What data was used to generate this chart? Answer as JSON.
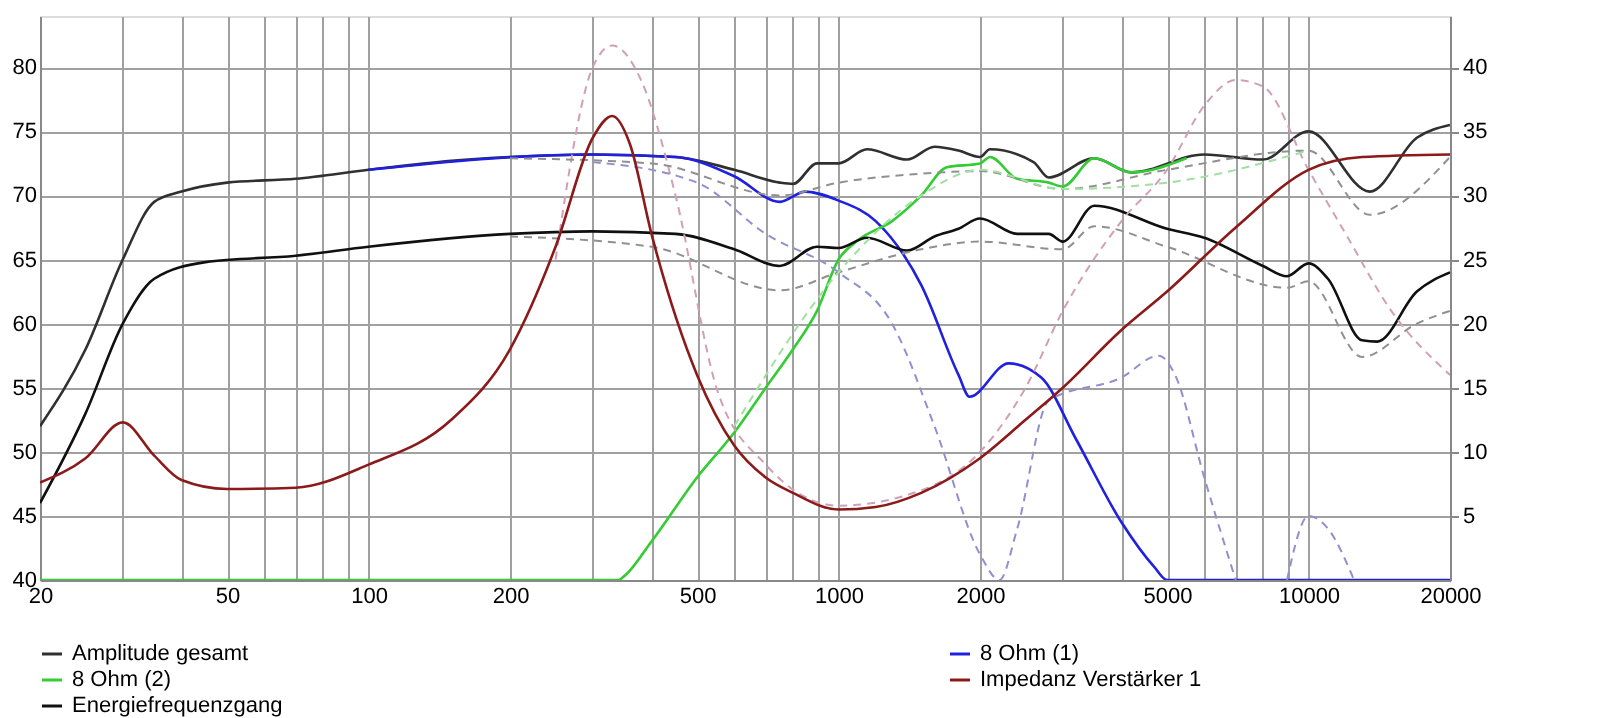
{
  "chart_data": {
    "type": "line",
    "log": "x",
    "grid": true,
    "legend": "bottom",
    "line_style": "solid",
    "marker": "none",
    "xlim": [
      20,
      20000
    ],
    "xticks": [
      20,
      {
        "value": 30,
        "label": null
      },
      {
        "value": 40,
        "label": null
      },
      50,
      {
        "value": 60,
        "label": null
      },
      {
        "value": 70,
        "label": null
      },
      {
        "value": 80,
        "label": null
      },
      {
        "value": 90,
        "label": null
      },
      100,
      200,
      {
        "value": 300,
        "label": null
      },
      {
        "value": 400,
        "label": null
      },
      500,
      {
        "value": 600,
        "label": null
      },
      {
        "value": 700,
        "label": null
      },
      {
        "value": 800,
        "label": null
      },
      {
        "value": 900,
        "label": null
      },
      1000,
      2000,
      {
        "value": 3000,
        "label": null
      },
      {
        "value": 4000,
        "label": null
      },
      5000,
      {
        "value": 6000,
        "label": null
      },
      {
        "value": 7000,
        "label": null
      },
      {
        "value": 8000,
        "label": null
      },
      {
        "value": 9000,
        "label": null
      },
      10000,
      20000
    ],
    "ylim": [
      40,
      84
    ],
    "yticks": [
      40,
      45,
      50,
      55,
      60,
      65,
      70,
      75,
      80
    ],
    "y2lim": [
      0,
      44
    ],
    "y2ticks": [
      5,
      10,
      15,
      20,
      25,
      30,
      35,
      40
    ],
    "series": [
      {
        "name": "Amplitude gesamt",
        "color": "#303030",
        "x": [
          20,
          25,
          30,
          35,
          40,
          50,
          70,
          100,
          150,
          200,
          300,
          450,
          600,
          750,
          800,
          900,
          1000,
          1150,
          1400,
          1600,
          1800,
          2000,
          2100,
          2600,
          2800,
          3500,
          4200,
          6000,
          8000,
          10000,
          13500,
          17000,
          20000
        ],
        "values": [
          52,
          58,
          65,
          69.5,
          70.3,
          71,
          71.3,
          72,
          72.7,
          73,
          73.2,
          73,
          72,
          71,
          70.9,
          72.5,
          72.5,
          73.6,
          72.8,
          73.8,
          73.5,
          73,
          73.6,
          72.6,
          71.4,
          72.9,
          71.8,
          73.2,
          72.8,
          75,
          70.3,
          74.5,
          75.5
        ]
      },
      {
        "name": "8 Ohm (1)",
        "color": "#2020e0",
        "x": [
          100,
          300,
          450,
          600,
          750,
          850,
          1000,
          1200,
          1500,
          1800,
          1900,
          2300,
          2700,
          3200,
          4000,
          4700,
          5000,
          20000
        ],
        "values": [
          72,
          73.2,
          73,
          71.5,
          69.5,
          70.3,
          69.6,
          68,
          63,
          56,
          54.3,
          56.9,
          55.8,
          51,
          44.5,
          41,
          40,
          40
        ]
      },
      {
        "name": "8 Ohm (2)",
        "color": "#33cc33",
        "x": [
          20,
          340,
          350,
          400,
          500,
          600,
          700,
          800,
          900,
          1000,
          1100,
          1300,
          1500,
          1700,
          2000,
          2100,
          2400,
          2800,
          3000,
          3500,
          4200,
          5500
        ],
        "values": [
          40,
          40,
          40.3,
          43,
          48,
          51.5,
          55,
          58,
          61,
          65,
          66.5,
          68,
          70,
          72.2,
          72.5,
          73,
          71.3,
          71,
          70.7,
          72.9,
          71.8,
          72.9
        ]
      },
      {
        "name": "Impedanz Verstärker 1",
        "color": "#8b1a1a",
        "axis": "y2",
        "x": [
          20,
          25,
          30,
          35,
          40,
          50,
          70,
          100,
          150,
          200,
          250,
          300,
          330,
          360,
          400,
          500,
          600,
          700,
          800,
          1000,
          1200,
          1500,
          2000,
          2500,
          3000,
          4000,
          5000,
          7000,
          10000,
          13000,
          20000
        ],
        "values": [
          7.6,
          9.5,
          12.3,
          9.7,
          7.8,
          7.1,
          7.2,
          9,
          12.5,
          18,
          26,
          34.5,
          36.2,
          34,
          27,
          16,
          10.5,
          8,
          6.8,
          5.5,
          5.7,
          6.8,
          9.5,
          12.5,
          15,
          19.5,
          22.5,
          27.5,
          32,
          33,
          33.2
        ]
      },
      {
        "name": "Energiefrequenzgang",
        "color": "#101010",
        "x": [
          20,
          25,
          30,
          35,
          45,
          70,
          100,
          200,
          300,
          450,
          600,
          750,
          900,
          1000,
          1150,
          1400,
          1600,
          1800,
          2000,
          2400,
          2800,
          3000,
          3500,
          5000,
          6000,
          8000,
          9000,
          10000,
          11000,
          13000,
          14000,
          17000,
          20000
        ],
        "values": [
          46,
          53,
          60,
          63.5,
          64.8,
          65.3,
          66,
          67,
          67.2,
          67,
          65.8,
          64.5,
          66,
          65.9,
          66.7,
          65.7,
          66.8,
          67.4,
          68.2,
          67,
          67,
          66.4,
          69.2,
          67.4,
          66.7,
          64.5,
          63.7,
          64.7,
          63.5,
          58.7,
          58.6,
          62.5,
          64
        ]
      },
      {
        "color": "#d0a0b8",
        "line_style": "dashed",
        "x": [
          250,
          300,
          330,
          380,
          450,
          550,
          700,
          1000,
          1500,
          2000,
          2500,
          3000,
          4000,
          5000,
          6000,
          7000,
          8000,
          10000,
          12000,
          15000,
          20000
        ],
        "values": [
          65,
          80,
          81.7,
          79,
          70,
          55,
          49,
          45.8,
          47,
          50,
          55,
          61,
          68,
          72,
          77,
          79,
          78.5,
          72,
          67,
          61,
          56
        ]
      },
      {
        "color": "#9090d0",
        "line_style": "dashed",
        "x": [
          300,
          500,
          700,
          1000,
          1300,
          1600,
          2000,
          2200,
          2400,
          2800,
          4000,
          4800,
          5200,
          6000,
          7000,
          8000,
          9000,
          10000,
          11000,
          12500
        ],
        "values": [
          72.6,
          71,
          67,
          64,
          60,
          52,
          42,
          40,
          44,
          54,
          55.8,
          57.5,
          56,
          48,
          40,
          null,
          40,
          45,
          44,
          40
        ]
      },
      {
        "color": "#909090",
        "line_style": "dashed",
        "x": [
          200,
          400,
          750,
          1000,
          1500,
          2000,
          3000,
          5000,
          10000,
          13500,
          20000
        ],
        "values": [
          72.9,
          72.5,
          70,
          71,
          71.7,
          71.9,
          70.5,
          72,
          73.5,
          68.5,
          73
        ]
      },
      {
        "color": "#909090",
        "line_style": "dashed",
        "x": [
          200,
          400,
          750,
          1000,
          1500,
          2000,
          3000,
          3500,
          5000,
          9000,
          10000,
          13000,
          17000,
          20000
        ],
        "values": [
          66.8,
          66,
          62.6,
          64,
          65.8,
          66.4,
          65.8,
          67.6,
          66,
          62.8,
          63.3,
          57.4,
          60,
          61
        ]
      },
      {
        "color": "#a0e0a0",
        "line_style": "dashed",
        "x": [
          600,
          1000,
          1500,
          2000,
          3000,
          5000,
          10000
        ],
        "values": [
          52,
          64,
          70,
          72,
          70.5,
          71,
          73.5
        ]
      }
    ]
  }
}
